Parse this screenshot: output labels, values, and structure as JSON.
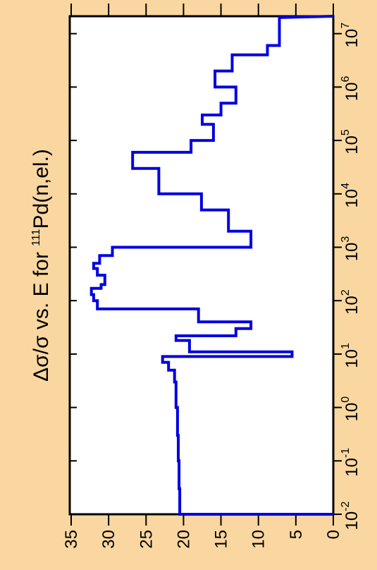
{
  "chart_data": {
    "type": "line",
    "title_prefix": "Δσ/σ vs. E for ",
    "title_sup": "111",
    "title_suffix": "Pd(n,el.)",
    "x_scale": "log",
    "x_ticks": [
      {
        "base": "10",
        "exp": "-2",
        "value": 0.01
      },
      {
        "base": "10",
        "exp": "-1",
        "value": 0.1
      },
      {
        "base": "10",
        "exp": "0",
        "value": 1
      },
      {
        "base": "10",
        "exp": "1",
        "value": 10
      },
      {
        "base": "10",
        "exp": "2",
        "value": 100
      },
      {
        "base": "10",
        "exp": "3",
        "value": 1000
      },
      {
        "base": "10",
        "exp": "4",
        "value": 10000
      },
      {
        "base": "10",
        "exp": "5",
        "value": 100000
      },
      {
        "base": "10",
        "exp": "6",
        "value": 1000000
      },
      {
        "base": "10",
        "exp": "7",
        "value": 10000000
      }
    ],
    "xlim": [
      0.01,
      20000000
    ],
    "y_ticks": [
      "0",
      "5",
      "10",
      "15",
      "20",
      "25",
      "30",
      "35"
    ],
    "ylim": [
      0,
      35
    ],
    "orientation": "rotated-90",
    "grid": false,
    "series": [
      {
        "color": "#0000e0",
        "x": [
          0.01,
          0.03,
          0.1,
          0.3,
          1,
          3,
          5,
          7,
          9,
          11,
          18,
          22,
          30,
          40,
          70,
          100,
          130,
          170,
          200,
          300,
          400,
          500,
          700,
          1000,
          2000,
          5000,
          10000,
          30000,
          60000,
          100000,
          200000,
          300000,
          500000,
          1000000,
          2000000,
          4000000,
          6000000,
          20000000
        ],
        "y": [
          20.5,
          20.6,
          20.7,
          20.8,
          21.0,
          21.2,
          22.0,
          22.8,
          5.5,
          19.2,
          21.0,
          13.0,
          11.0,
          18.0,
          31.5,
          32.0,
          32.3,
          31.0,
          30.5,
          31.5,
          32.0,
          31.2,
          29.5,
          11.0,
          14.0,
          17.6,
          23.3,
          26.8,
          19.0,
          16.0,
          17.5,
          15.0,
          13.0,
          15.8,
          13.5,
          8.8,
          7.2,
          7.5
        ]
      }
    ]
  }
}
